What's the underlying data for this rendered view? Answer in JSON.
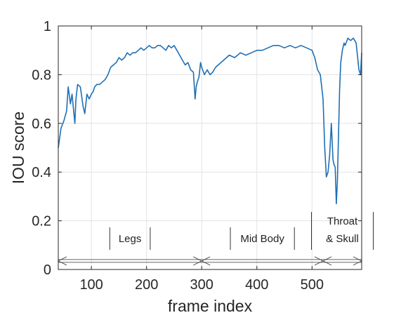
{
  "colors": {
    "line": "#1f6fb4",
    "grid": "#e3e3e3",
    "axis": "#262626",
    "annotation": "#333333"
  },
  "chart_data": {
    "type": "line",
    "title": "",
    "xlabel": "frame index",
    "ylabel": "IOU score",
    "xlim": [
      40,
      590
    ],
    "ylim": [
      0,
      1
    ],
    "xticks": [
      100,
      200,
      300,
      400,
      500
    ],
    "yticks": [
      0,
      0.2,
      0.4,
      0.6,
      0.8,
      1
    ],
    "xtick_labels": [
      "100",
      "200",
      "300",
      "400",
      "500"
    ],
    "ytick_labels": [
      "0",
      "0.2",
      "0.4",
      "0.6",
      "0.8",
      "1"
    ],
    "grid": true,
    "legend": "none",
    "series": [
      {
        "x": [
          40,
          45,
          50,
          55,
          58,
          62,
          65,
          70,
          72,
          75,
          80,
          85,
          88,
          92,
          96,
          100,
          103,
          106,
          110,
          115,
          120,
          125,
          130,
          135,
          140,
          145,
          150,
          155,
          160,
          165,
          170,
          175,
          180,
          185,
          190,
          195,
          200,
          205,
          210,
          215,
          220,
          225,
          230,
          235,
          240,
          245,
          250,
          255,
          260,
          265,
          270,
          275,
          280,
          285,
          288,
          290,
          292,
          295,
          298,
          300,
          305,
          310,
          315,
          320,
          325,
          330,
          340,
          350,
          360,
          370,
          380,
          390,
          400,
          410,
          420,
          430,
          440,
          450,
          460,
          470,
          480,
          490,
          500,
          505,
          510,
          515,
          520,
          523,
          526,
          529,
          532,
          535,
          538,
          540,
          542,
          544,
          546,
          548,
          550,
          552,
          555,
          558,
          560,
          565,
          570,
          575,
          580,
          585,
          588,
          590
        ],
        "y": [
          0.5,
          0.58,
          0.61,
          0.65,
          0.75,
          0.68,
          0.72,
          0.6,
          0.7,
          0.76,
          0.75,
          0.67,
          0.64,
          0.72,
          0.7,
          0.72,
          0.73,
          0.75,
          0.76,
          0.76,
          0.77,
          0.78,
          0.8,
          0.83,
          0.84,
          0.85,
          0.87,
          0.86,
          0.87,
          0.89,
          0.88,
          0.89,
          0.89,
          0.9,
          0.91,
          0.9,
          0.91,
          0.92,
          0.91,
          0.91,
          0.92,
          0.92,
          0.91,
          0.9,
          0.92,
          0.91,
          0.92,
          0.9,
          0.88,
          0.86,
          0.84,
          0.85,
          0.82,
          0.81,
          0.7,
          0.75,
          0.77,
          0.79,
          0.85,
          0.83,
          0.8,
          0.82,
          0.8,
          0.81,
          0.83,
          0.84,
          0.86,
          0.88,
          0.87,
          0.89,
          0.88,
          0.89,
          0.9,
          0.9,
          0.91,
          0.92,
          0.92,
          0.91,
          0.92,
          0.91,
          0.92,
          0.91,
          0.9,
          0.87,
          0.82,
          0.8,
          0.7,
          0.5,
          0.38,
          0.4,
          0.47,
          0.6,
          0.45,
          0.43,
          0.42,
          0.27,
          0.36,
          0.55,
          0.74,
          0.85,
          0.9,
          0.93,
          0.92,
          0.95,
          0.94,
          0.95,
          0.93,
          0.82,
          0.8,
          0.89
        ]
      }
    ],
    "annotations": [
      {
        "label": "Legs",
        "x_start": 40,
        "x_end": 300
      },
      {
        "label": "Mid Body",
        "x_start": 300,
        "x_end": 520
      },
      {
        "label": "Throat",
        "label_line2": "& Skull",
        "x_start": 520,
        "x_end": 590
      }
    ]
  }
}
